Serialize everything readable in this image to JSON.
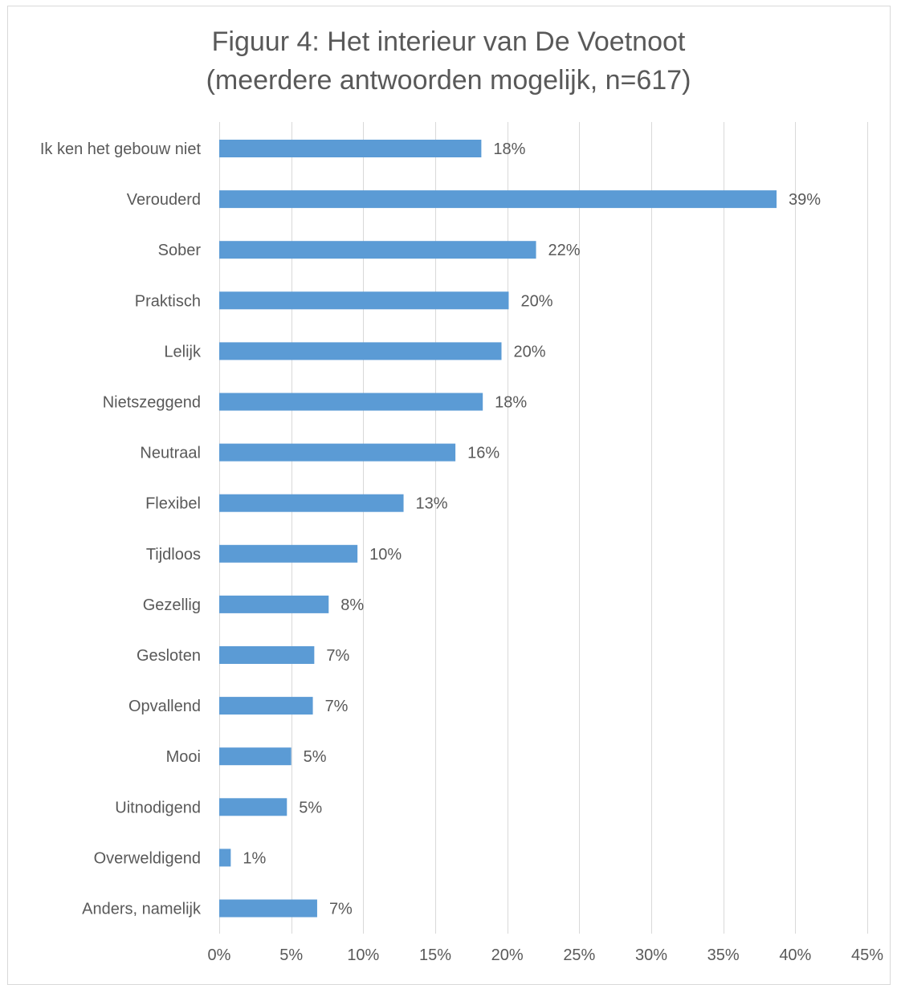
{
  "chart_data": {
    "type": "bar",
    "orientation": "horizontal",
    "title": "Figuur 4: Het interieur van De Voetnoot",
    "subtitle": "(meerdere antwoorden mogelijk, n=617)",
    "xlabel": "",
    "ylabel": "",
    "categories": [
      "Ik ken het gebouw niet",
      "Verouderd",
      "Sober",
      "Praktisch",
      "Lelijk",
      "Nietszeggend",
      "Neutraal",
      "Flexibel",
      "Tijdloos",
      "Gezellig",
      "Gesloten",
      "Opvallend",
      "Mooi",
      "Uitnodigend",
      "Overweldigend",
      "Anders, namelijk"
    ],
    "values": [
      18.2,
      38.7,
      22.0,
      20.1,
      19.6,
      18.3,
      16.4,
      12.8,
      9.6,
      7.6,
      6.6,
      6.5,
      5.0,
      4.7,
      0.8,
      6.8
    ],
    "data_labels": [
      "18%",
      "39%",
      "22%",
      "20%",
      "20%",
      "18%",
      "16%",
      "13%",
      "10%",
      "8%",
      "7%",
      "7%",
      "5%",
      "5%",
      "1%",
      "7%"
    ],
    "xlim": [
      0,
      45
    ],
    "x_ticks": [
      0,
      5,
      10,
      15,
      20,
      25,
      30,
      35,
      40,
      45
    ],
    "x_tick_labels": [
      "0%",
      "5%",
      "10%",
      "15%",
      "20%",
      "25%",
      "30%",
      "35%",
      "40%",
      "45%"
    ],
    "grid": true,
    "legend": "none",
    "colors": {
      "bar": "#5b9bd5",
      "grid": "#d9d9d9",
      "text": "#595959",
      "border": "#d9d9d9"
    }
  }
}
